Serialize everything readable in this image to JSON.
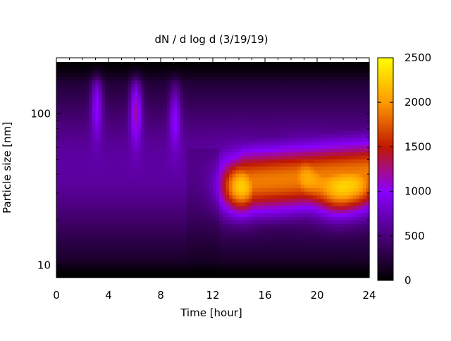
{
  "chart_data": {
    "type": "heatmap",
    "title": "dN / d log d (3/19/19)",
    "xlabel": "Time [hour]",
    "ylabel": "Particle size [nm]",
    "xlim": [
      0,
      24
    ],
    "x_ticks": [
      0,
      4,
      8,
      12,
      16,
      20,
      24
    ],
    "y_scale": "log",
    "ylim": [
      8.3,
      220
    ],
    "y_tick_labels": [
      10,
      100
    ],
    "colorbar": {
      "range": [
        0,
        2500
      ],
      "ticks": [
        0,
        500,
        1000,
        1500,
        2000,
        2500
      ],
      "colormap": [
        "#000000",
        "#4a007a",
        "#8a00ff",
        "#c01800",
        "#ff9a00",
        "#ffff00"
      ]
    },
    "intensity_features": [
      {
        "time_h": 3.1,
        "size_nm": 120,
        "peak_dNdlogd": 1300
      },
      {
        "time_h": 6.1,
        "size_nm": 110,
        "peak_dNdlogd": 1450
      },
      {
        "time_h": 9.1,
        "size_nm": 100,
        "peak_dNdlogd": 1200
      },
      {
        "time_h": 14.2,
        "size_nm": 33,
        "peak_dNdlogd": 2300
      },
      {
        "time_h": 19.0,
        "size_nm": 38,
        "peak_dNdlogd": 2000
      },
      {
        "time_h": 21.5,
        "size_nm": 32,
        "peak_dNdlogd": 1950
      },
      {
        "time_h": 23.5,
        "size_nm": 35,
        "peak_dNdlogd": 1800
      }
    ],
    "grid": false,
    "legend": "colorbar-right"
  }
}
